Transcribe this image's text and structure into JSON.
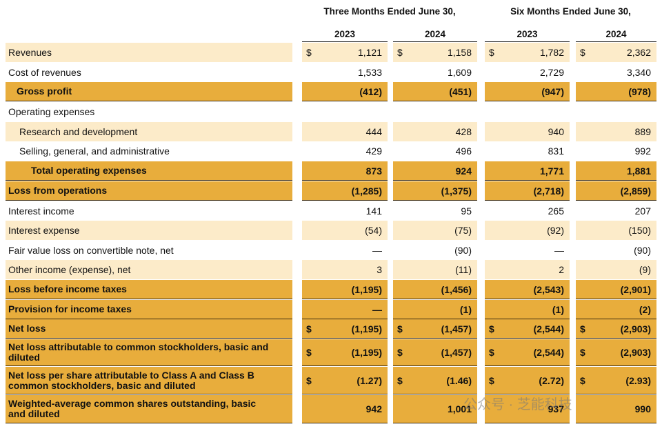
{
  "header": {
    "groups": [
      "Three Months Ended June 30,",
      "Six Months Ended June 30,"
    ],
    "years": [
      "2023",
      "2024",
      "2023",
      "2024"
    ]
  },
  "table": {
    "rows": [
      {
        "label": "Revenues",
        "symbols": [
          "$",
          "$",
          "$",
          "$"
        ],
        "values": [
          "1,121",
          "1,158",
          "1,782",
          "2,362"
        ]
      },
      {
        "label": "Cost of revenues",
        "values": [
          "1,533",
          "1,609",
          "2,729",
          "3,340"
        ]
      },
      {
        "label": "Gross profit",
        "values": [
          "(412)",
          "(451)",
          "(947)",
          "(978)"
        ]
      },
      {
        "label": "Operating expenses",
        "values": []
      },
      {
        "label": "Research and development",
        "values": [
          "444",
          "428",
          "940",
          "889"
        ]
      },
      {
        "label": "Selling, general, and administrative",
        "values": [
          "429",
          "496",
          "831",
          "992"
        ]
      },
      {
        "label": "Total operating expenses",
        "values": [
          "873",
          "924",
          "1,771",
          "1,881"
        ]
      },
      {
        "label": "Loss from operations",
        "values": [
          "(1,285)",
          "(1,375)",
          "(2,718)",
          "(2,859)"
        ]
      },
      {
        "label": "Interest income",
        "values": [
          "141",
          "95",
          "265",
          "207"
        ]
      },
      {
        "label": "Interest expense",
        "values": [
          "(54)",
          "(75)",
          "(92)",
          "(150)"
        ]
      },
      {
        "label": "Fair value loss on convertible note, net",
        "values": [
          "—",
          "(90)",
          "—",
          "(90)"
        ]
      },
      {
        "label": "Other income (expense), net",
        "values": [
          "3",
          "(11)",
          "2",
          "(9)"
        ]
      },
      {
        "label": "Loss before income taxes",
        "values": [
          "(1,195)",
          "(1,456)",
          "(2,543)",
          "(2,901)"
        ]
      },
      {
        "label": "Provision for income taxes",
        "values": [
          "—",
          "(1)",
          "(1)",
          "(2)"
        ]
      },
      {
        "label": "Net loss",
        "symbols": [
          "$",
          "$",
          "$",
          "$"
        ],
        "values": [
          "(1,195)",
          "(1,457)",
          "(2,544)",
          "(2,903)"
        ]
      },
      {
        "label": "Net loss attributable to common stockholders, basic and diluted",
        "symbols": [
          "$",
          "$",
          "$",
          "$"
        ],
        "values": [
          "(1,195)",
          "(1,457)",
          "(2,544)",
          "(2,903)"
        ]
      },
      {
        "label": "Net loss per share attributable to Class A and Class B common stockholders, basic and diluted",
        "symbols": [
          "$",
          "$",
          "$",
          "$"
        ],
        "values": [
          "(1.27)",
          "(1.46)",
          "(2.72)",
          "(2.93)"
        ]
      },
      {
        "label": "Weighted-average common shares outstanding, basic and diluted",
        "values": [
          "942",
          "1,001",
          "937",
          "990"
        ]
      }
    ]
  },
  "watermark": "公众号 · 芝能科技"
}
